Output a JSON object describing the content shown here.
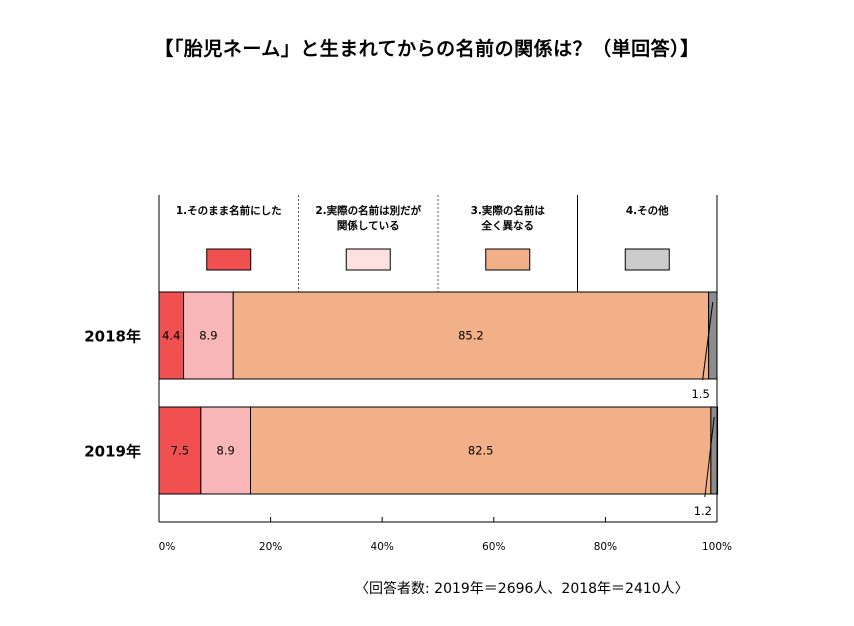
{
  "title": "【「胎児ネーム」と生まれてからの名前の関係は？（単回答）】",
  "footnote": "〈回答者数: 2019年＝2696人、2018年＝2410人〉",
  "chart_data": {
    "type": "bar",
    "orientation": "horizontal",
    "stacked": true,
    "title": "【「胎児ネーム」と生まれてからの名前の関係は？（単回答）】",
    "categories": [
      "2018年",
      "2019年"
    ],
    "series": [
      {
        "name": "1.そのまま名前にした",
        "lines": [
          "1.そのまま名前にした"
        ],
        "color": "#f05050",
        "values": [
          4.4,
          7.5
        ]
      },
      {
        "name": "2.実際の名前は別だが関係している",
        "lines": [
          "2.実際の名前は別だが",
          "関係している"
        ],
        "color": "#f8b6b8",
        "values": [
          8.9,
          8.9
        ]
      },
      {
        "name": "3.実際の名前は全く異なる",
        "lines": [
          "3.実際の名前は",
          "全く異なる"
        ],
        "color": "#f2b088",
        "values": [
          85.2,
          82.5
        ]
      },
      {
        "name": "4.その他",
        "lines": [
          "4.その他"
        ],
        "color": "#8c8c8c",
        "values": [
          1.5,
          1.2
        ]
      }
    ],
    "legend_swatch_colors": [
      "#f05050",
      "#fde0e0",
      "#f2b088",
      "#cccccc"
    ],
    "x_ticks": [
      "0%",
      "20%",
      "40%",
      "60%",
      "80%",
      "100%"
    ],
    "xlim": [
      0,
      100
    ],
    "legend_position": "top",
    "grid": false
  }
}
